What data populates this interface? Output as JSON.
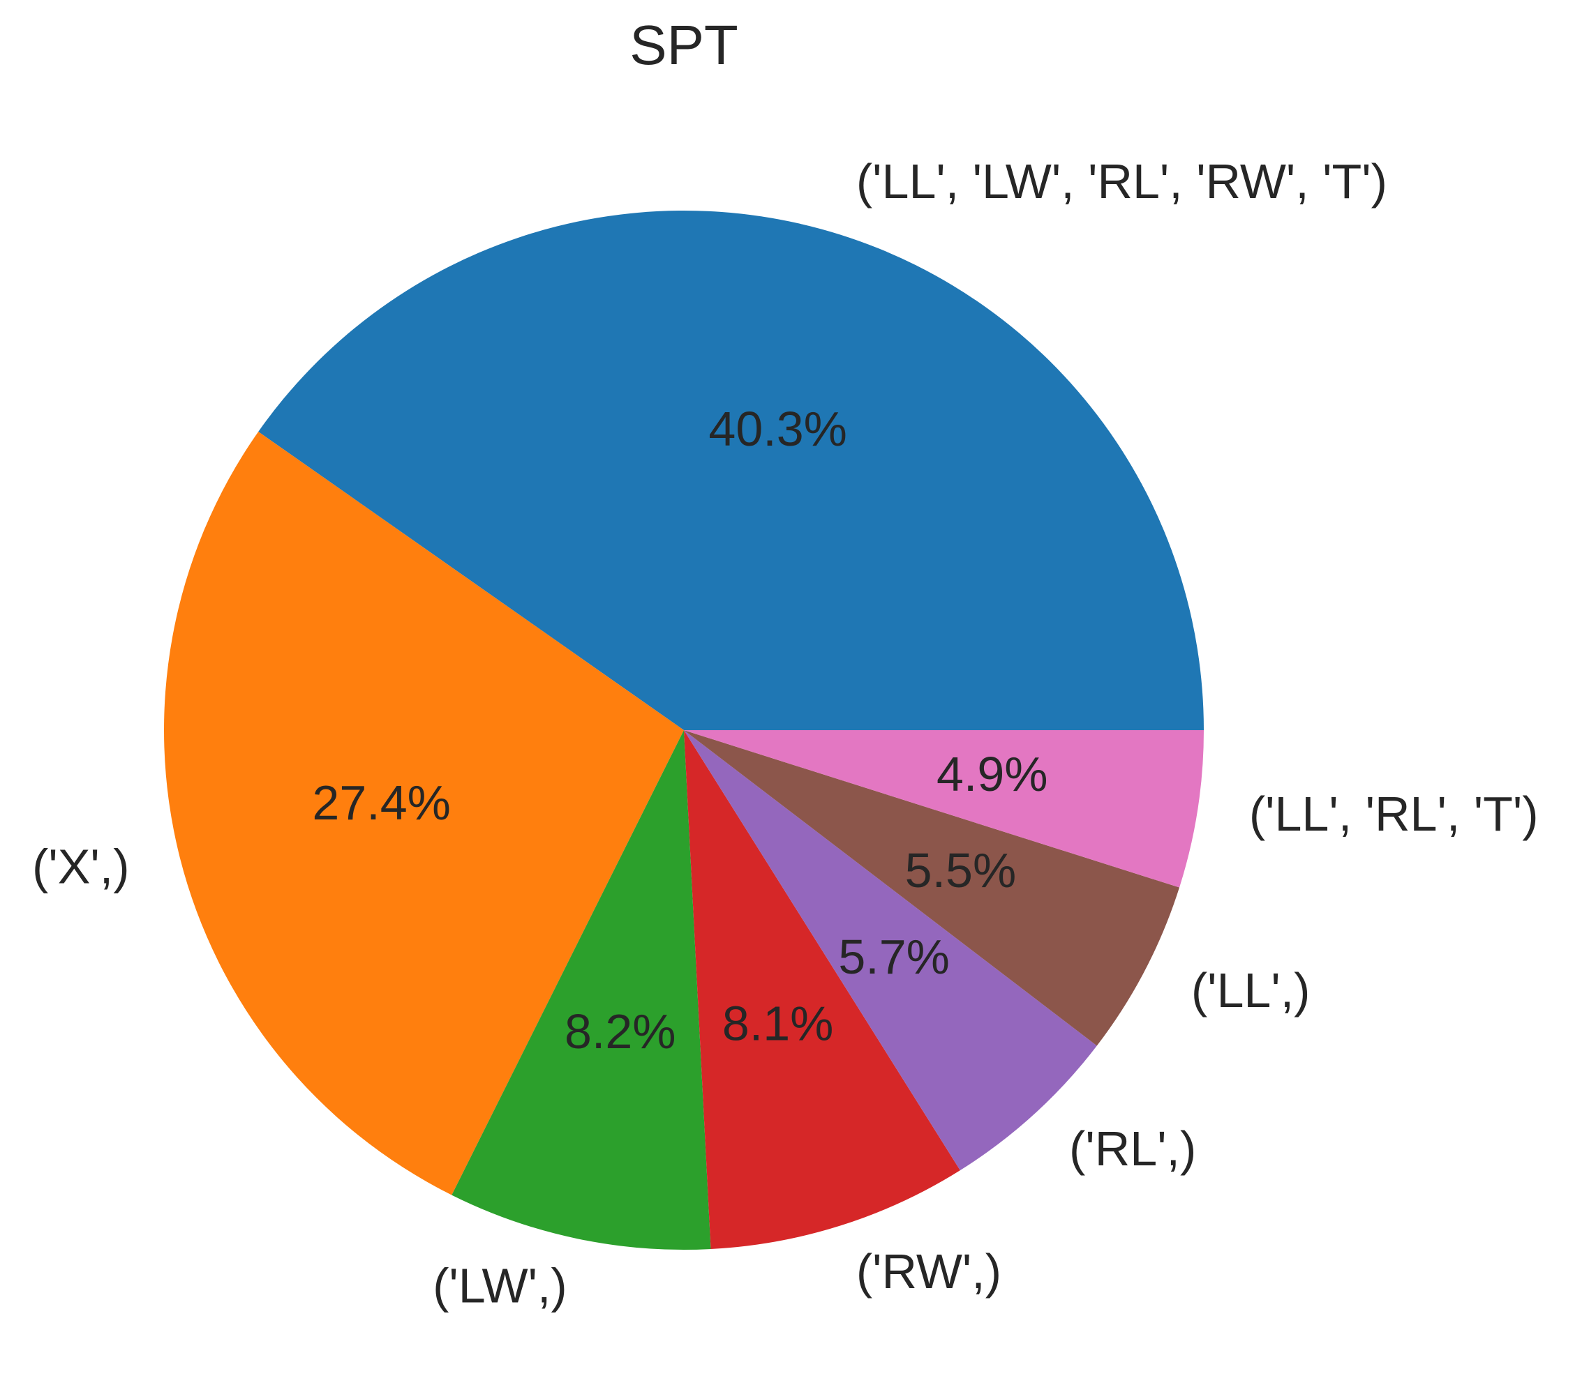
{
  "chart_data": {
    "type": "pie",
    "title": "SPT",
    "start_angle": 0,
    "direction": "counterclockwise",
    "slices": [
      {
        "label": "('LL', 'LW', 'RL', 'RW', 'T')",
        "value": 40.3,
        "pct_label": "40.3%",
        "color": "#1f77b4"
      },
      {
        "label": "('X',)",
        "value": 27.4,
        "pct_label": "27.4%",
        "color": "#ff7f0e"
      },
      {
        "label": "('LW',)",
        "value": 8.2,
        "pct_label": "8.2%",
        "color": "#2ca02c"
      },
      {
        "label": "('RW',)",
        "value": 8.1,
        "pct_label": "8.1%",
        "color": "#d62728"
      },
      {
        "label": "('RL',)",
        "value": 5.7,
        "pct_label": "5.7%",
        "color": "#9467bd"
      },
      {
        "label": "('LL',)",
        "value": 5.5,
        "pct_label": "5.5%",
        "color": "#8c564b"
      },
      {
        "label": "('LL', 'RL', 'T')",
        "value": 4.9,
        "pct_label": "4.9%",
        "color": "#e377c2"
      }
    ]
  }
}
